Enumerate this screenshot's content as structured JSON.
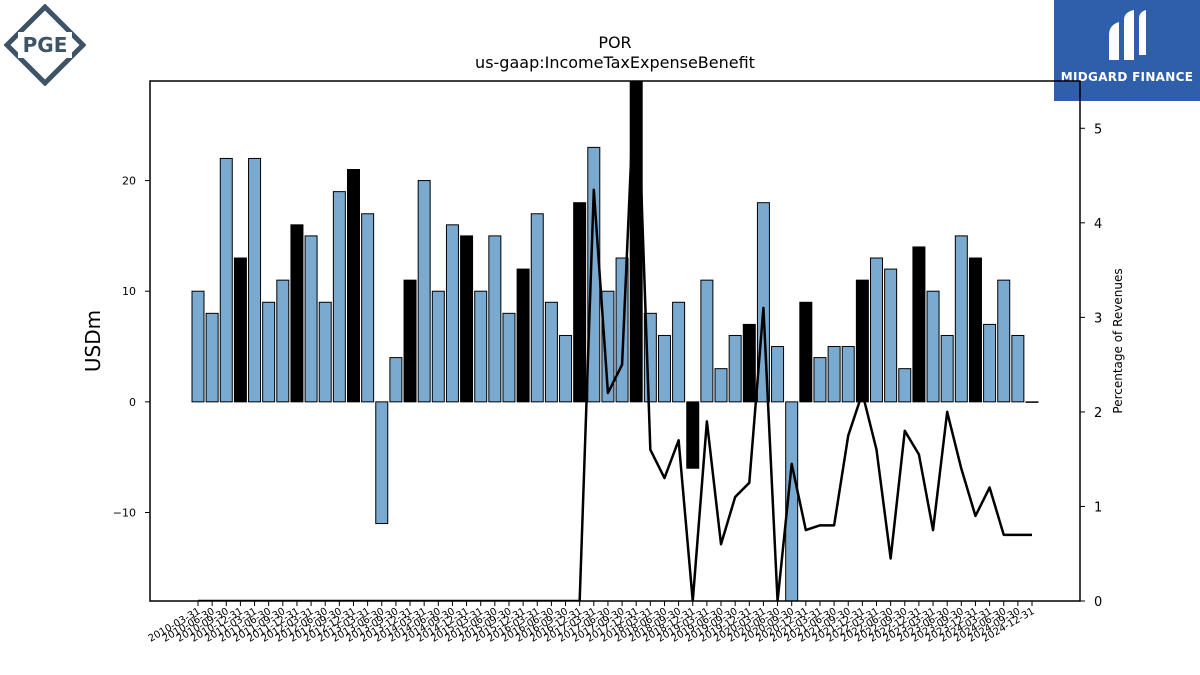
{
  "logos": {
    "left_text": "PGE",
    "right_text": "MIDGARD FINANCE"
  },
  "colors": {
    "bar_normal": "#7aaad0",
    "bar_highlight": "#000000",
    "line": "#000000",
    "left_logo": "#3d5366",
    "right_logo_bg": "#2f5eaa"
  },
  "chart_data": {
    "type": "bar",
    "title": "POR",
    "subtitle": "us-gaap:IncomeTaxExpenseBenefit",
    "ylabel": "USDm",
    "y2label": "Percentage of Revenues",
    "ylim": [
      -18,
      29
    ],
    "y2lim": [
      0,
      5.5
    ],
    "yticks": [
      -10,
      0,
      10,
      20
    ],
    "y2ticks": [
      0,
      1,
      2,
      3,
      4,
      5
    ],
    "grid": false,
    "categories": [
      "2010-03-31",
      "2010-06-30",
      "2010-09-30",
      "2010-12-31",
      "2011-03-31",
      "2011-06-30",
      "2011-09-30",
      "2011-12-31",
      "2012-03-31",
      "2012-06-30",
      "2012-09-30",
      "2012-12-31",
      "2013-03-31",
      "2013-06-30",
      "2013-09-30",
      "2013-12-31",
      "2014-03-31",
      "2014-06-30",
      "2014-09-30",
      "2014-12-31",
      "2015-03-31",
      "2015-06-30",
      "2015-09-30",
      "2015-12-31",
      "2016-03-31",
      "2016-06-30",
      "2016-09-30",
      "2016-12-31",
      "2017-03-31",
      "2017-06-30",
      "2017-09-30",
      "2017-12-31",
      "2018-03-31",
      "2018-06-30",
      "2018-09-30",
      "2018-12-31",
      "2019-03-31",
      "2019-06-30",
      "2019-09-30",
      "2019-12-31",
      "2020-03-31",
      "2020-06-30",
      "2020-09-30",
      "2020-12-31",
      "2021-03-31",
      "2021-06-30",
      "2021-09-30",
      "2021-12-31",
      "2022-03-31",
      "2022-06-30",
      "2022-09-30",
      "2022-12-31",
      "2023-03-31",
      "2023-06-30",
      "2023-09-30",
      "2023-12-31",
      "2024-03-31",
      "2024-06-30",
      "2024-09-30",
      "2024-12-31"
    ],
    "series": [
      {
        "kind": "bar",
        "axis": "left",
        "values": [
          10,
          8,
          22,
          13,
          22,
          9,
          11,
          16,
          15,
          9,
          19,
          21,
          17,
          -11,
          4,
          11,
          20,
          10,
          16,
          15,
          10,
          15,
          8,
          12,
          17,
          9,
          6,
          18,
          23,
          10,
          13,
          30,
          8,
          6,
          9,
          -6,
          11,
          3,
          6,
          7,
          18,
          5,
          -18,
          9,
          4,
          5,
          5,
          11,
          13,
          12,
          3,
          14,
          10,
          6,
          15,
          13,
          7,
          11,
          6,
          0
        ],
        "highlight": [
          false,
          false,
          false,
          true,
          false,
          false,
          false,
          true,
          false,
          false,
          false,
          true,
          false,
          false,
          false,
          true,
          false,
          false,
          false,
          true,
          false,
          false,
          false,
          true,
          false,
          false,
          false,
          true,
          false,
          false,
          false,
          true,
          false,
          false,
          false,
          true,
          false,
          false,
          false,
          true,
          false,
          false,
          false,
          true,
          false,
          false,
          false,
          true,
          false,
          false,
          false,
          true,
          false,
          false,
          false,
          true,
          false,
          false,
          false,
          true
        ]
      },
      {
        "kind": "line",
        "axis": "right",
        "values": [
          0,
          0,
          0,
          0,
          0,
          0,
          0,
          0,
          0,
          0,
          0,
          0,
          0,
          0,
          0,
          0,
          0,
          0,
          0,
          0,
          0,
          0,
          0,
          0,
          0,
          0,
          0,
          0,
          4.35,
          2.2,
          2.5,
          5.9,
          1.6,
          1.3,
          1.7,
          0,
          1.9,
          0.6,
          1.1,
          1.25,
          3.1,
          0,
          1.45,
          0.75,
          0.8,
          0.8,
          1.75,
          2.2,
          1.6,
          0.45,
          1.8,
          1.55,
          0.75,
          2.0,
          1.4,
          0.9,
          1.2,
          0.7,
          0.7,
          0.7
        ]
      }
    ]
  }
}
